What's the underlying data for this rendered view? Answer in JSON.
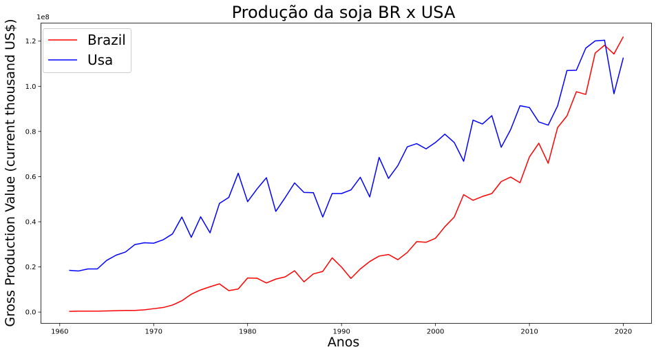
{
  "chart_data": {
    "type": "line",
    "title": "Produção da soja BR x USA",
    "xlabel": "Anos",
    "ylabel": "Gross Production Value (current thousand US$)",
    "y_offset_label": "1e8",
    "xlim": [
      1958,
      2023
    ],
    "ylim": [
      -0.05,
      1.28
    ],
    "x_ticks": [
      1960,
      1970,
      1980,
      1990,
      2000,
      2010,
      2020
    ],
    "x_tick_labels": [
      "1960",
      "1970",
      "1980",
      "1990",
      "2000",
      "2010",
      "2020"
    ],
    "y_ticks": [
      0.0,
      0.2,
      0.4,
      0.6,
      0.8,
      1.0,
      1.2
    ],
    "y_tick_labels": [
      "0.0",
      "0.2",
      "0.4",
      "0.6",
      "0.8",
      "1.0",
      "1.2"
    ],
    "grid": false,
    "legend_position": "top-left",
    "x": [
      1961,
      1962,
      1963,
      1964,
      1965,
      1966,
      1967,
      1968,
      1969,
      1970,
      1971,
      1972,
      1973,
      1974,
      1975,
      1976,
      1977,
      1978,
      1979,
      1980,
      1981,
      1982,
      1983,
      1984,
      1985,
      1986,
      1987,
      1988,
      1989,
      1990,
      1991,
      1992,
      1993,
      1994,
      1995,
      1996,
      1997,
      1998,
      1999,
      2000,
      2001,
      2002,
      2003,
      2004,
      2005,
      2006,
      2007,
      2008,
      2009,
      2010,
      2011,
      2012,
      2013,
      2014,
      2015,
      2016,
      2017,
      2018,
      2019,
      2020
    ],
    "series": [
      {
        "name": "Brazil",
        "color": "#ff0000",
        "values": [
          0.003,
          0.004,
          0.004,
          0.004,
          0.005,
          0.006,
          0.007,
          0.007,
          0.01,
          0.015,
          0.02,
          0.031,
          0.05,
          0.079,
          0.098,
          0.112,
          0.125,
          0.095,
          0.102,
          0.151,
          0.15,
          0.129,
          0.146,
          0.156,
          0.183,
          0.134,
          0.169,
          0.18,
          0.24,
          0.199,
          0.149,
          0.191,
          0.224,
          0.248,
          0.255,
          0.232,
          0.264,
          0.312,
          0.309,
          0.327,
          0.378,
          0.421,
          0.52,
          0.495,
          0.512,
          0.525,
          0.578,
          0.598,
          0.573,
          0.687,
          0.748,
          0.659,
          0.817,
          0.869,
          0.976,
          0.964,
          1.147,
          1.182,
          1.143,
          1.22
        ]
      },
      {
        "name": "Usa",
        "color": "#0000ff",
        "values": [
          0.185,
          0.182,
          0.191,
          0.191,
          0.229,
          0.252,
          0.266,
          0.299,
          0.307,
          0.305,
          0.32,
          0.346,
          0.421,
          0.331,
          0.422,
          0.351,
          0.481,
          0.508,
          0.615,
          0.489,
          0.545,
          0.595,
          0.446,
          0.507,
          0.572,
          0.53,
          0.529,
          0.421,
          0.525,
          0.525,
          0.541,
          0.597,
          0.51,
          0.685,
          0.592,
          0.649,
          0.732,
          0.746,
          0.723,
          0.751,
          0.788,
          0.751,
          0.668,
          0.85,
          0.833,
          0.87,
          0.73,
          0.808,
          0.914,
          0.906,
          0.842,
          0.828,
          0.913,
          1.07,
          1.071,
          1.169,
          1.201,
          1.204,
          0.967,
          1.127
        ]
      }
    ]
  }
}
